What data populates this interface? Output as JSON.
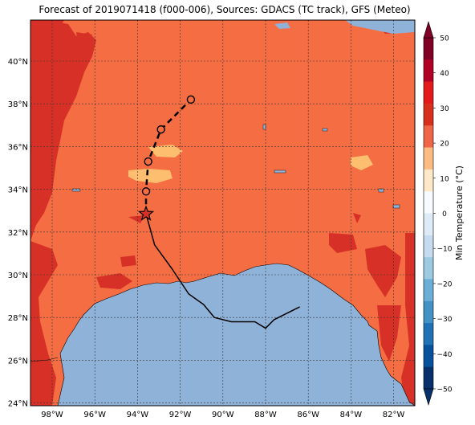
{
  "title": "Forecast of 2019071418 (f000-006), Sources: GDACS (TC track), GFS (Meteo)",
  "lat_labels": [
    "40°N",
    "38°N",
    "36°N",
    "34°N",
    "32°N",
    "30°N",
    "28°N",
    "26°N",
    "24°N"
  ],
  "lon_labels": [
    "98°W",
    "96°W",
    "94°W",
    "92°W",
    "90°W",
    "88°W",
    "86°W",
    "84°W",
    "82°W"
  ],
  "colorbar": {
    "label": "Min Temperature (°C)",
    "ticks": [
      "50",
      "40",
      "30",
      "20",
      "10",
      "0",
      "−10",
      "−20",
      "−30",
      "−40",
      "−50"
    ],
    "colors": [
      "#800026",
      "#b10026",
      "#e31a1c",
      "#d7301f",
      "#ef6548",
      "#fdbb84",
      "#fee8c8",
      "#f7fbff",
      "#deebf7",
      "#c6dbef",
      "#9ecae1",
      "#6baed6",
      "#4292c6",
      "#2171b5",
      "#08519c",
      "#08306b"
    ]
  },
  "map_colors": {
    "land_base": "#f46d43",
    "hot": "#d73027",
    "cool": "#fdbf6f",
    "water": "#8fb2d9"
  },
  "track": {
    "observed": [
      [
        -93.6,
        32.85
      ],
      [
        -93.2,
        31.4
      ],
      [
        -92.4,
        30.3
      ],
      [
        -91.6,
        29.1
      ],
      [
        -90.9,
        28.6
      ],
      [
        -90.4,
        28.0
      ],
      [
        -89.6,
        27.8
      ],
      [
        -88.5,
        27.8
      ],
      [
        -88.0,
        27.5
      ],
      [
        -87.6,
        27.9
      ],
      [
        -86.4,
        28.5
      ]
    ],
    "forecast": [
      [
        -93.6,
        32.85
      ],
      [
        -93.6,
        33.9
      ],
      [
        -93.5,
        35.3
      ],
      [
        -92.9,
        36.8
      ],
      [
        -91.5,
        38.2
      ]
    ],
    "current": [
      -93.6,
      32.85
    ]
  }
}
